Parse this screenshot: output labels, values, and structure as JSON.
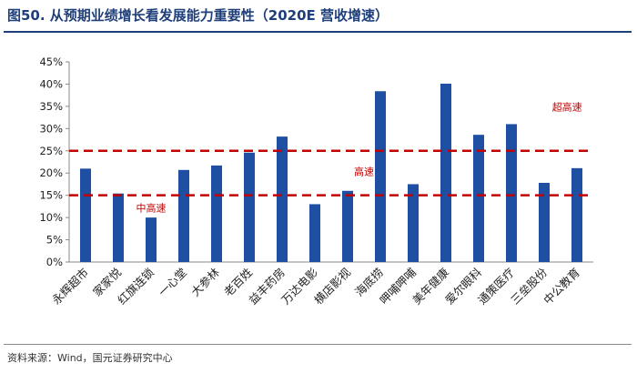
{
  "header": {
    "title": "图50. 从预期业绩增长看发展能力重要性（2020E 营收增速）"
  },
  "footer": {
    "source": "资料来源：Wind，国元证券研究中心"
  },
  "colors": {
    "bar": "#1f4fa3",
    "threshold_line": "#c00000",
    "annotation": "#c00000",
    "title": "#1f3f7a"
  },
  "chart_data": {
    "type": "bar",
    "categories": [
      "永辉超市",
      "家家悦",
      "红旗连锁",
      "一心堂",
      "大参林",
      "老百姓",
      "益丰药房",
      "万达电影",
      "横店影视",
      "海底捞",
      "呷哺呷哺",
      "美年健康",
      "爱尔眼科",
      "通策医疗",
      "三垒股份",
      "中公教育"
    ],
    "values": [
      21.0,
      15.4,
      10.0,
      20.7,
      21.7,
      24.6,
      28.2,
      13.0,
      16.0,
      38.4,
      17.5,
      40.1,
      28.6,
      31.0,
      17.8,
      21.1
    ],
    "value_unit": "%",
    "ylim": [
      0,
      45
    ],
    "yticks": [
      0,
      5,
      10,
      15,
      20,
      25,
      30,
      35,
      40,
      45
    ],
    "ytick_labels": [
      "0%",
      "5%",
      "10%",
      "15%",
      "20%",
      "25%",
      "30%",
      "35%",
      "40%",
      "45%"
    ],
    "reference_lines": [
      15,
      25
    ],
    "annotations": [
      {
        "text": "中高速",
        "x_index": 2.0,
        "y": 12.2
      },
      {
        "text": "高速",
        "x_index": 8.5,
        "y": 20.4
      },
      {
        "text": "超高速",
        "x_index": 14.7,
        "y": 34.9
      }
    ],
    "grid": false,
    "legend": "none"
  }
}
